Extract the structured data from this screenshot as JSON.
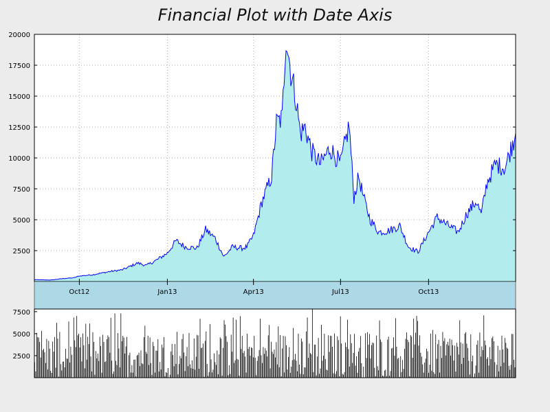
{
  "chart_data": [
    {
      "type": "area",
      "title": "Financial Plot with Date Axis",
      "xlabel": "",
      "ylabel": "",
      "ylim": [
        0,
        20000
      ],
      "yticks": [
        2500,
        5000,
        7500,
        10000,
        12500,
        15000,
        17500,
        20000
      ],
      "x_tick_labels": [
        "Oct12",
        "Jan13",
        "Apr13",
        "Jul13",
        "Oct13"
      ],
      "x_range": [
        "2012-08-15",
        "2013-12-31"
      ],
      "x_tick_dates": [
        "2012-10-01",
        "2013-01-01",
        "2013-04-01",
        "2013-07-01",
        "2013-10-01"
      ],
      "grid": true,
      "line_color": "#0000ff",
      "fill_color": "#b2ecec",
      "series": [
        {
          "x": [
            "2012-08-15",
            "2012-09-01",
            "2012-09-15",
            "2012-09-25",
            "2012-10-01",
            "2012-10-15",
            "2012-11-01",
            "2012-11-15",
            "2012-12-01",
            "2012-12-10",
            "2012-12-20",
            "2013-01-01",
            "2013-01-10",
            "2013-01-20",
            "2013-02-01",
            "2013-02-10",
            "2013-02-20",
            "2013-03-01",
            "2013-03-10",
            "2013-03-20",
            "2013-03-25",
            "2013-04-01",
            "2013-04-10",
            "2013-04-20",
            "2013-04-25",
            "2013-05-01",
            "2013-05-05",
            "2013-05-10",
            "2013-05-15",
            "2013-05-20",
            "2013-05-25",
            "2013-06-01",
            "2013-06-10",
            "2013-06-20",
            "2013-07-01",
            "2013-07-10",
            "2013-07-15",
            "2013-07-20",
            "2013-07-25",
            "2013-08-01",
            "2013-08-10",
            "2013-08-20",
            "2013-09-01",
            "2013-09-10",
            "2013-09-20",
            "2013-10-01",
            "2013-10-10",
            "2013-10-20",
            "2013-11-01",
            "2013-11-10",
            "2013-11-20",
            "2013-11-25",
            "2013-12-01",
            "2013-12-10",
            "2013-12-20",
            "2013-12-31"
          ],
          "y": [
            150,
            120,
            250,
            300,
            450,
            550,
            800,
            950,
            1500,
            1300,
            1700,
            2300,
            3300,
            2800,
            2700,
            4200,
            3500,
            2000,
            2800,
            2700,
            2800,
            3700,
            6500,
            8500,
            12800,
            13200,
            20000,
            17000,
            15000,
            12000,
            12500,
            10500,
            9500,
            10800,
            9500,
            12700,
            6800,
            8500,
            6800,
            5000,
            4000,
            4100,
            4500,
            2800,
            2400,
            4000,
            5200,
            4600,
            4000,
            5500,
            6500,
            5400,
            8000,
            9500,
            9200,
            12000
          ]
        }
      ]
    },
    {
      "type": "bar",
      "title": "",
      "ylim": [
        0,
        7800
      ],
      "yticks": [
        2500,
        5000,
        7500
      ],
      "bar_color": "#000000"
    }
  ]
}
